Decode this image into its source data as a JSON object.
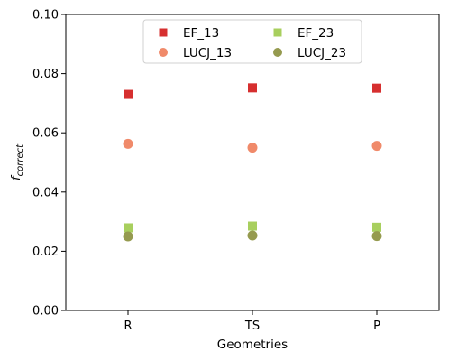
{
  "chart_data": {
    "type": "scatter",
    "categories": [
      "R",
      "TS",
      "P"
    ],
    "xlabel": "Geometries",
    "ylabel_main": "f",
    "ylabel_sub": "correct",
    "ylim": [
      0.0,
      0.1
    ],
    "yticks": [
      "0.00",
      "0.02",
      "0.04",
      "0.06",
      "0.08",
      "0.10"
    ],
    "grid": false,
    "legend_position": "top-center",
    "series": [
      {
        "name": "EF_13",
        "marker": "square",
        "color": "#d62f2f",
        "values": [
          0.073,
          0.0752,
          0.0751
        ]
      },
      {
        "name": "LUCJ_13",
        "marker": "circle",
        "color": "#f08a6a",
        "values": [
          0.0563,
          0.055,
          0.0556
        ]
      },
      {
        "name": "EF_23",
        "marker": "square",
        "color": "#a8cf5e",
        "values": [
          0.0279,
          0.0285,
          0.0281
        ]
      },
      {
        "name": "LUCJ_23",
        "marker": "circle",
        "color": "#959a4f",
        "values": [
          0.025,
          0.0253,
          0.0251
        ]
      }
    ]
  }
}
